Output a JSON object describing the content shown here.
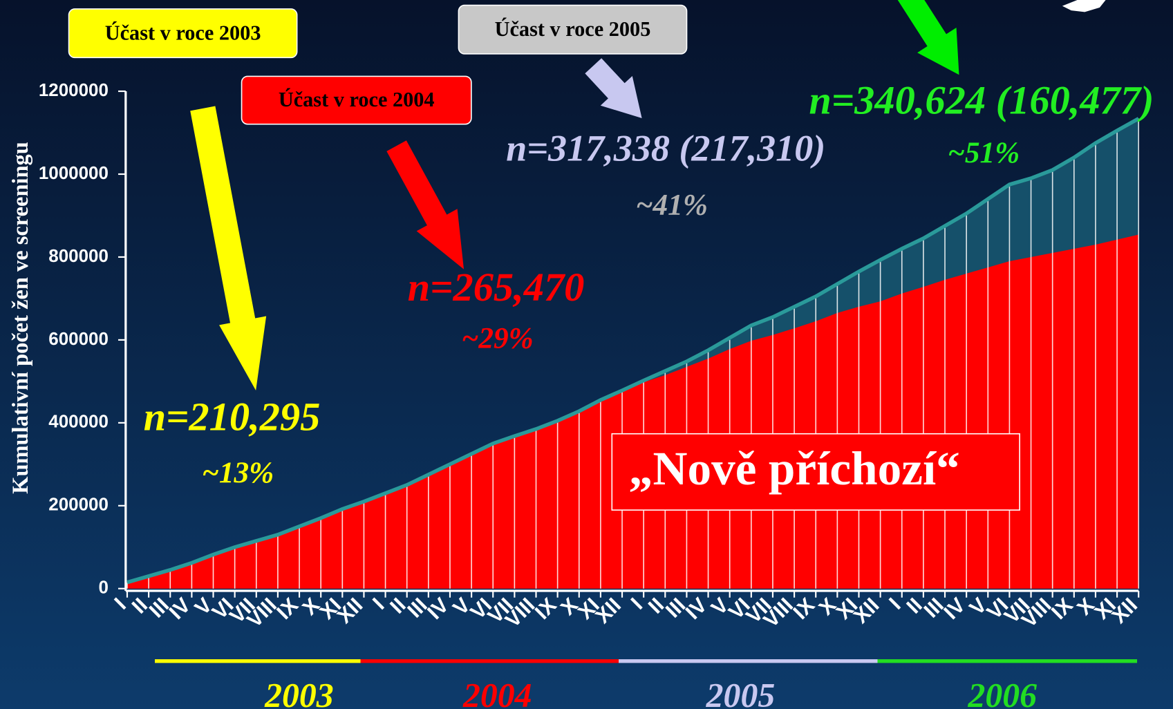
{
  "chart_data": {
    "type": "area",
    "y_label": "Kumulativní počet žen ve screeningu",
    "ylim": [
      0,
      1200000
    ],
    "yticks": [
      0,
      200000,
      400000,
      600000,
      800000,
      1000000,
      1200000
    ],
    "categories": [
      "I",
      "II",
      "III",
      "IV",
      "V",
      "VI",
      "VII",
      "VIII",
      "IX",
      "X",
      "XI",
      "XII",
      "I",
      "II",
      "III",
      "IV",
      "V",
      "VI",
      "VII",
      "VIII",
      "IX",
      "X",
      "XI",
      "XII",
      "I",
      "II",
      "III",
      "IV",
      "V",
      "VI",
      "VII",
      "VIII",
      "IX",
      "X",
      "XI",
      "XII",
      "I",
      "II",
      "III",
      "IV",
      "V",
      "VI",
      "VII",
      "VIII",
      "IX",
      "X",
      "XI",
      "XII"
    ],
    "series": [
      {
        "name": "„Nově příchozí“",
        "color": "#ff0000",
        "values": [
          15000,
          30000,
          45000,
          62000,
          82000,
          100000,
          115000,
          130000,
          150000,
          170000,
          192000,
          210000,
          230000,
          250000,
          275000,
          300000,
          325000,
          350000,
          368000,
          385000,
          405000,
          428000,
          452000,
          476000,
          498000,
          515000,
          535000,
          555000,
          578000,
          598000,
          612000,
          628000,
          645000,
          665000,
          680000,
          693000,
          712000,
          728000,
          745000,
          760000,
          775000,
          790000,
          800000,
          810000,
          820000,
          830000,
          842000,
          854000
        ]
      },
      {
        "color": "#2a9a9a",
        "values": [
          15000,
          30000,
          45000,
          62000,
          82000,
          100000,
          115000,
          130000,
          150000,
          170000,
          192000,
          210000,
          230000,
          250000,
          275000,
          300000,
          325000,
          350000,
          368000,
          385000,
          405000,
          428000,
          455000,
          478000,
          502000,
          525000,
          548000,
          575000,
          605000,
          635000,
          655000,
          680000,
          705000,
          735000,
          765000,
          793000,
          820000,
          845000,
          875000,
          905000,
          940000,
          975000,
          990000,
          1010000,
          1040000,
          1075000,
          1105000,
          1134000
        ]
      }
    ],
    "years": [
      {
        "label": "2003",
        "color": "#ffff00"
      },
      {
        "label": "2004",
        "color": "#ff0000"
      },
      {
        "label": "2005",
        "color": "#c8c8f0"
      },
      {
        "label": "2006",
        "color": "#22dd22"
      }
    ],
    "boxes": [
      {
        "text": "Účast v roce 2003",
        "color": "#ffff00"
      },
      {
        "text": "Účast v roce 2004",
        "color": "#ff0000"
      },
      {
        "text": "Účast v roce 2005",
        "color": "#c8c8c8"
      }
    ],
    "annotations": [
      {
        "text": "n=210,295",
        "color": "#ffff00"
      },
      {
        "text": "~13%",
        "color": "#ffff00"
      },
      {
        "text": "n=265,470",
        "color": "#ff0000"
      },
      {
        "text": "~29%",
        "color": "#ff0000"
      },
      {
        "text": "n=317,338 (217,310)",
        "color": "#c8c8f0"
      },
      {
        "text": "~41%",
        "color": "#b0b0b0"
      },
      {
        "text": "n=340,624 (160,477)",
        "color": "#22ee22"
      },
      {
        "text": "~51%",
        "color": "#22ee22"
      }
    ]
  }
}
